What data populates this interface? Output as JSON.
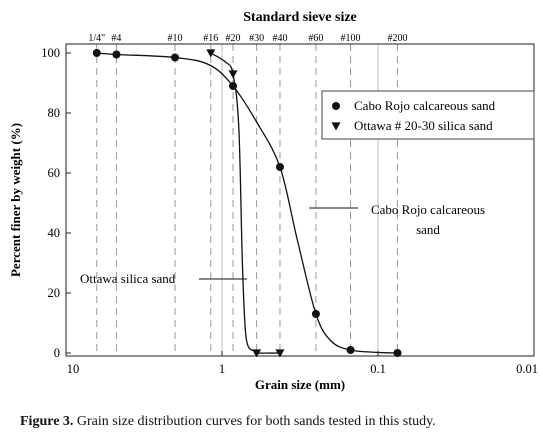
{
  "caption": {
    "figure_label": "Figure 3.",
    "text": " Grain size distribution curves for both sands tested in this study."
  },
  "chart_data": {
    "type": "line",
    "title": "Standard sieve size",
    "xlabel": "Grain size (mm)",
    "ylabel": "Percent finer by weight (%)",
    "x_scale": "log",
    "x_reversed": true,
    "xlim": [
      10,
      0.01
    ],
    "ylim": [
      0,
      100
    ],
    "x_ticks": [
      {
        "value": 10,
        "label": "10"
      },
      {
        "value": 1,
        "label": "1"
      },
      {
        "value": 0.1,
        "label": "0.1"
      },
      {
        "value": 0.01,
        "label": "0.01"
      }
    ],
    "y_ticks": [
      {
        "value": 0,
        "label": "0"
      },
      {
        "value": 20,
        "label": "20"
      },
      {
        "value": 40,
        "label": "40"
      },
      {
        "value": 60,
        "label": "60"
      },
      {
        "value": 80,
        "label": "80"
      },
      {
        "value": 100,
        "label": "100"
      }
    ],
    "sieves": [
      {
        "label": "1/4\"",
        "size": 6.35
      },
      {
        "label": "#4",
        "size": 4.75
      },
      {
        "label": "#10",
        "size": 2.0
      },
      {
        "label": "#16",
        "size": 1.18
      },
      {
        "label": "#20",
        "size": 0.85
      },
      {
        "label": "#30",
        "size": 0.6
      },
      {
        "label": "#40",
        "size": 0.425
      },
      {
        "label": "#60",
        "size": 0.25
      },
      {
        "label": "#100",
        "size": 0.15
      },
      {
        "label": "#200",
        "size": 0.075
      }
    ],
    "series": [
      {
        "name": "Cabo Rojo calcareous sand",
        "marker": "circle",
        "points": [
          [
            6.35,
            100
          ],
          [
            4.75,
            99.5
          ],
          [
            2.0,
            98.5
          ],
          [
            0.85,
            89
          ],
          [
            0.425,
            62
          ],
          [
            0.25,
            13
          ],
          [
            0.15,
            1
          ],
          [
            0.075,
            0
          ]
        ],
        "curve": [
          [
            6.35,
            100
          ],
          [
            4.75,
            99.5
          ],
          [
            2.0,
            98.5
          ],
          [
            1.2,
            96
          ],
          [
            0.85,
            89
          ],
          [
            0.6,
            77
          ],
          [
            0.425,
            62
          ],
          [
            0.33,
            38
          ],
          [
            0.25,
            13
          ],
          [
            0.2,
            4
          ],
          [
            0.15,
            1
          ],
          [
            0.1,
            0.2
          ],
          [
            0.075,
            0
          ]
        ]
      },
      {
        "name": "Ottawa # 20-30 silica sand",
        "marker": "triangle-down",
        "points": [
          [
            1.18,
            100
          ],
          [
            0.85,
            93
          ],
          [
            0.6,
            0
          ],
          [
            0.425,
            0
          ]
        ],
        "curve": [
          [
            1.18,
            100
          ],
          [
            0.95,
            97
          ],
          [
            0.85,
            93
          ],
          [
            0.78,
            75
          ],
          [
            0.74,
            30
          ],
          [
            0.7,
            5
          ],
          [
            0.62,
            0.5
          ],
          [
            0.6,
            0
          ],
          [
            0.425,
            0
          ]
        ]
      }
    ],
    "legend_position": "right",
    "annotations": [
      {
        "id": "cabo",
        "text": [
          "Cabo Rojo calcareous",
          "sand"
        ]
      },
      {
        "id": "ottawa",
        "text": [
          "Ottawa silica sand"
        ]
      }
    ]
  }
}
